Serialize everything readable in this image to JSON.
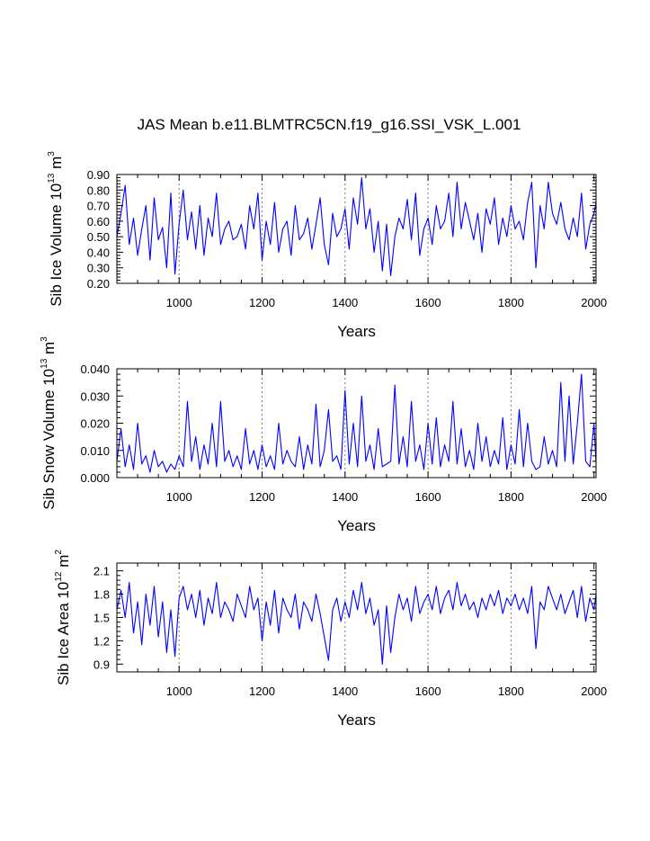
{
  "title": "JAS Mean b.e11.BLMTRC5CN.f19_g16.SSI_VSK_L.001",
  "colors": {
    "series": "#0000ff",
    "axis": "#000000",
    "refline": "#777777"
  },
  "chart_data": [
    {
      "type": "line",
      "xlabel": "Years",
      "ylabel": {
        "prefix": "Sib Ice Volume 10",
        "exp": "13",
        "unit": " m",
        "unit_exp": "3"
      },
      "xlim": [
        850,
        2005
      ],
      "ylim": [
        0.2,
        0.9
      ],
      "xticks": [
        1000,
        1200,
        1400,
        1600,
        1800,
        2000
      ],
      "yticks": [
        0.2,
        0.3,
        0.4,
        0.5,
        0.6,
        0.7,
        0.8,
        0.9
      ],
      "ytick_labels": [
        "0.20",
        "0.30",
        "0.40",
        "0.50",
        "0.60",
        "0.70",
        "0.80",
        "0.90"
      ],
      "reference_lines_x": [
        1000,
        1200,
        1400,
        1600,
        1800
      ],
      "series": [
        {
          "x": [
            850,
            860,
            870,
            880,
            890,
            900,
            910,
            920,
            930,
            940,
            950,
            960,
            970,
            980,
            990,
            1000,
            1010,
            1020,
            1030,
            1040,
            1050,
            1060,
            1070,
            1080,
            1090,
            1100,
            1110,
            1120,
            1130,
            1140,
            1150,
            1160,
            1170,
            1180,
            1190,
            1200,
            1210,
            1220,
            1230,
            1240,
            1250,
            1260,
            1270,
            1280,
            1290,
            1300,
            1310,
            1320,
            1330,
            1340,
            1350,
            1360,
            1370,
            1380,
            1390,
            1400,
            1410,
            1420,
            1430,
            1440,
            1450,
            1460,
            1470,
            1480,
            1490,
            1500,
            1510,
            1520,
            1530,
            1540,
            1550,
            1560,
            1570,
            1580,
            1590,
            1600,
            1610,
            1620,
            1630,
            1640,
            1650,
            1660,
            1670,
            1680,
            1690,
            1700,
            1710,
            1720,
            1730,
            1740,
            1750,
            1760,
            1770,
            1780,
            1790,
            1800,
            1810,
            1820,
            1830,
            1840,
            1850,
            1860,
            1870,
            1880,
            1890,
            1900,
            1910,
            1920,
            1930,
            1940,
            1950,
            1960,
            1970,
            1980,
            1990,
            2000,
            2005
          ],
          "values": [
            0.5,
            0.65,
            0.83,
            0.45,
            0.62,
            0.38,
            0.55,
            0.7,
            0.35,
            0.75,
            0.48,
            0.56,
            0.3,
            0.78,
            0.26,
            0.58,
            0.8,
            0.48,
            0.66,
            0.42,
            0.7,
            0.38,
            0.62,
            0.5,
            0.78,
            0.45,
            0.55,
            0.6,
            0.48,
            0.5,
            0.58,
            0.42,
            0.7,
            0.55,
            0.78,
            0.35,
            0.6,
            0.45,
            0.72,
            0.4,
            0.55,
            0.6,
            0.38,
            0.7,
            0.48,
            0.52,
            0.62,
            0.42,
            0.58,
            0.75,
            0.45,
            0.32,
            0.65,
            0.5,
            0.55,
            0.68,
            0.42,
            0.75,
            0.58,
            0.88,
            0.55,
            0.68,
            0.4,
            0.6,
            0.28,
            0.58,
            0.25,
            0.5,
            0.62,
            0.55,
            0.74,
            0.48,
            0.78,
            0.38,
            0.55,
            0.62,
            0.45,
            0.7,
            0.55,
            0.6,
            0.78,
            0.5,
            0.85,
            0.55,
            0.72,
            0.6,
            0.48,
            0.65,
            0.4,
            0.68,
            0.58,
            0.75,
            0.45,
            0.62,
            0.5,
            0.7,
            0.55,
            0.6,
            0.48,
            0.72,
            0.85,
            0.3,
            0.7,
            0.55,
            0.85,
            0.65,
            0.58,
            0.72,
            0.55,
            0.48,
            0.62,
            0.5,
            0.78,
            0.42,
            0.58,
            0.65,
            0.72
          ]
        }
      ]
    },
    {
      "type": "line",
      "xlabel": "Years",
      "ylabel": {
        "prefix": "Sib Snow Volume 10",
        "exp": "13",
        "unit": " m",
        "unit_exp": "3"
      },
      "xlim": [
        850,
        2005
      ],
      "ylim": [
        0.0,
        0.04
      ],
      "xticks": [
        1000,
        1200,
        1400,
        1600,
        1800,
        2000
      ],
      "yticks": [
        0.0,
        0.01,
        0.02,
        0.03,
        0.04
      ],
      "ytick_labels": [
        "0.000",
        "0.010",
        "0.020",
        "0.030",
        "0.040"
      ],
      "reference_lines_x": [
        1000,
        1200,
        1400,
        1600,
        1800
      ],
      "series": [
        {
          "x": [
            850,
            860,
            870,
            880,
            890,
            900,
            910,
            920,
            930,
            940,
            950,
            960,
            970,
            980,
            990,
            1000,
            1010,
            1020,
            1030,
            1040,
            1050,
            1060,
            1070,
            1080,
            1090,
            1100,
            1110,
            1120,
            1130,
            1140,
            1150,
            1160,
            1170,
            1180,
            1190,
            1200,
            1210,
            1220,
            1230,
            1240,
            1250,
            1260,
            1270,
            1280,
            1290,
            1300,
            1310,
            1320,
            1330,
            1340,
            1350,
            1360,
            1370,
            1380,
            1390,
            1400,
            1410,
            1420,
            1430,
            1440,
            1450,
            1460,
            1470,
            1480,
            1490,
            1500,
            1510,
            1520,
            1530,
            1540,
            1550,
            1560,
            1570,
            1580,
            1590,
            1600,
            1610,
            1620,
            1630,
            1640,
            1650,
            1660,
            1670,
            1680,
            1690,
            1700,
            1710,
            1720,
            1730,
            1740,
            1750,
            1760,
            1770,
            1780,
            1790,
            1800,
            1810,
            1820,
            1830,
            1840,
            1850,
            1860,
            1870,
            1880,
            1890,
            1900,
            1910,
            1920,
            1930,
            1940,
            1950,
            1960,
            1970,
            1980,
            1990,
            2000,
            2005
          ],
          "values": [
            0.006,
            0.018,
            0.004,
            0.012,
            0.003,
            0.02,
            0.005,
            0.008,
            0.002,
            0.01,
            0.004,
            0.006,
            0.002,
            0.005,
            0.003,
            0.008,
            0.004,
            0.028,
            0.006,
            0.015,
            0.003,
            0.012,
            0.005,
            0.02,
            0.004,
            0.028,
            0.006,
            0.01,
            0.004,
            0.008,
            0.003,
            0.018,
            0.005,
            0.01,
            0.003,
            0.012,
            0.004,
            0.008,
            0.003,
            0.02,
            0.005,
            0.01,
            0.006,
            0.004,
            0.015,
            0.003,
            0.012,
            0.005,
            0.027,
            0.004,
            0.01,
            0.025,
            0.006,
            0.008,
            0.003,
            0.032,
            0.005,
            0.02,
            0.004,
            0.03,
            0.006,
            0.012,
            0.003,
            0.018,
            0.004,
            0.005,
            0.006,
            0.034,
            0.005,
            0.015,
            0.004,
            0.028,
            0.006,
            0.012,
            0.003,
            0.02,
            0.005,
            0.022,
            0.004,
            0.012,
            0.006,
            0.028,
            0.005,
            0.018,
            0.004,
            0.01,
            0.003,
            0.02,
            0.006,
            0.015,
            0.004,
            0.01,
            0.005,
            0.022,
            0.003,
            0.012,
            0.005,
            0.025,
            0.004,
            0.02,
            0.006,
            0.003,
            0.004,
            0.015,
            0.005,
            0.01,
            0.004,
            0.035,
            0.006,
            0.03,
            0.005,
            0.02,
            0.038,
            0.006,
            0.004,
            0.02,
            0.005
          ]
        }
      ]
    },
    {
      "type": "line",
      "xlabel": "Years",
      "ylabel": {
        "prefix": "Sib Ice Area 10",
        "exp": "12",
        "unit": " m",
        "unit_exp": "2"
      },
      "xlim": [
        850,
        2005
      ],
      "ylim": [
        0.8,
        2.2
      ],
      "xticks": [
        1000,
        1200,
        1400,
        1600,
        1800,
        2000
      ],
      "yticks": [
        0.9,
        1.2,
        1.5,
        1.8,
        2.1
      ],
      "ytick_labels": [
        "0.9",
        "1.2",
        "1.5",
        "1.8",
        "2.1"
      ],
      "reference_lines_x": [
        1000,
        1200,
        1400,
        1600,
        1800
      ],
      "series": [
        {
          "x": [
            850,
            860,
            870,
            880,
            890,
            900,
            910,
            920,
            930,
            940,
            950,
            960,
            970,
            980,
            990,
            1000,
            1010,
            1020,
            1030,
            1040,
            1050,
            1060,
            1070,
            1080,
            1090,
            1100,
            1110,
            1120,
            1130,
            1140,
            1150,
            1160,
            1170,
            1180,
            1190,
            1200,
            1210,
            1220,
            1230,
            1240,
            1250,
            1260,
            1270,
            1280,
            1290,
            1300,
            1310,
            1320,
            1330,
            1340,
            1350,
            1360,
            1370,
            1380,
            1390,
            1400,
            1410,
            1420,
            1430,
            1440,
            1450,
            1460,
            1470,
            1480,
            1490,
            1500,
            1510,
            1520,
            1530,
            1540,
            1550,
            1560,
            1570,
            1580,
            1590,
            1600,
            1610,
            1620,
            1630,
            1640,
            1650,
            1660,
            1670,
            1680,
            1690,
            1700,
            1710,
            1720,
            1730,
            1740,
            1750,
            1760,
            1770,
            1780,
            1790,
            1800,
            1810,
            1820,
            1830,
            1840,
            1850,
            1860,
            1870,
            1880,
            1890,
            1900,
            1910,
            1920,
            1930,
            1940,
            1950,
            1960,
            1970,
            1980,
            1990,
            2000,
            2005
          ],
          "values": [
            1.6,
            1.85,
            1.5,
            1.95,
            1.3,
            1.7,
            1.15,
            1.8,
            1.4,
            1.9,
            1.25,
            1.7,
            1.05,
            1.6,
            1.0,
            1.75,
            1.9,
            1.6,
            1.8,
            1.5,
            1.85,
            1.4,
            1.75,
            1.55,
            1.95,
            1.5,
            1.7,
            1.6,
            1.45,
            1.8,
            1.65,
            1.5,
            1.9,
            1.6,
            1.75,
            1.2,
            1.7,
            1.4,
            1.85,
            1.3,
            1.75,
            1.6,
            1.5,
            1.8,
            1.35,
            1.7,
            1.6,
            1.45,
            1.8,
            1.55,
            1.25,
            0.95,
            1.6,
            1.75,
            1.45,
            1.7,
            1.5,
            1.85,
            1.6,
            1.95,
            1.55,
            1.75,
            1.4,
            1.6,
            0.9,
            1.65,
            1.05,
            1.5,
            1.8,
            1.6,
            1.75,
            1.45,
            1.9,
            1.55,
            1.7,
            1.8,
            1.6,
            1.9,
            1.55,
            1.75,
            1.85,
            1.6,
            1.95,
            1.65,
            1.8,
            1.6,
            1.7,
            1.5,
            1.75,
            1.6,
            1.8,
            1.65,
            1.85,
            1.55,
            1.75,
            1.65,
            1.8,
            1.6,
            1.75,
            1.55,
            1.9,
            1.1,
            1.7,
            1.6,
            1.9,
            1.75,
            1.6,
            1.8,
            1.55,
            1.7,
            1.85,
            1.5,
            1.9,
            1.45,
            1.75,
            1.6,
            1.8
          ]
        }
      ]
    }
  ]
}
